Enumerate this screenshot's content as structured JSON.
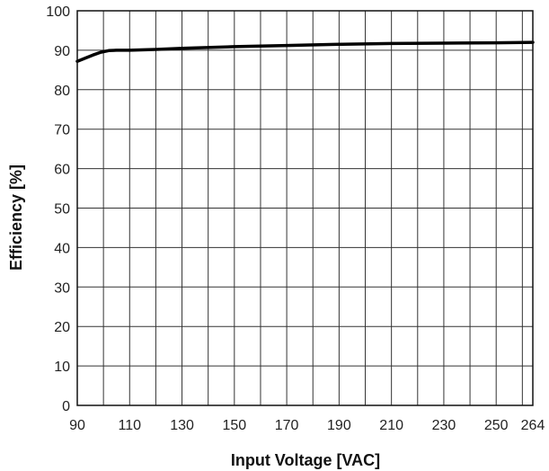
{
  "chart_data": {
    "type": "line",
    "title": "",
    "xlabel": "Input Voltage [VAC]",
    "ylabel": "Efficiency [%]",
    "xlim": [
      90,
      264
    ],
    "ylim": [
      0,
      100
    ],
    "x_ticks": [
      90,
      110,
      130,
      150,
      170,
      190,
      210,
      230,
      250,
      264
    ],
    "x_gridlines": [
      90,
      100,
      110,
      120,
      130,
      140,
      150,
      160,
      170,
      180,
      190,
      200,
      210,
      220,
      230,
      240,
      250,
      260,
      264
    ],
    "y_ticks": [
      0,
      10,
      20,
      30,
      40,
      50,
      60,
      70,
      80,
      90,
      100
    ],
    "grid": true,
    "series": [
      {
        "color": "#000000",
        "x": [
          90,
          93,
          96,
          99,
          102,
          105,
          110,
          120,
          130,
          150,
          170,
          190,
          210,
          230,
          250,
          264
        ],
        "y": [
          87.2,
          88.0,
          88.8,
          89.5,
          89.9,
          90.0,
          90.0,
          90.2,
          90.5,
          90.9,
          91.2,
          91.5,
          91.7,
          91.8,
          91.9,
          92.0
        ]
      }
    ]
  }
}
